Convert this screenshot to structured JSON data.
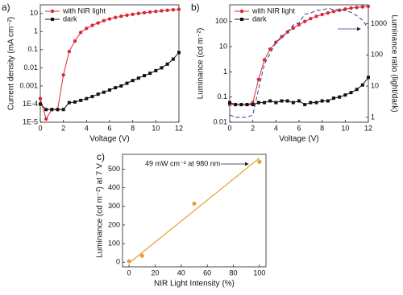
{
  "chart_data": [
    {
      "type": "line",
      "panel_label": "a)",
      "xlabel": "Voltage (V)",
      "ylabel": "Current density (mA cm⁻²)",
      "log_y": true,
      "x": [
        0,
        0.5,
        1,
        1.5,
        2,
        2.5,
        3,
        3.5,
        4,
        4.5,
        5,
        5.5,
        6,
        6.5,
        7,
        7.5,
        8,
        8.5,
        9,
        9.5,
        10,
        10.5,
        11,
        11.5,
        12
      ],
      "xlim": [
        0,
        12
      ],
      "xticks": [
        0,
        2,
        4,
        6,
        8,
        10,
        12
      ],
      "ylim": [
        1e-05,
        30
      ],
      "yticks": [
        {
          "value": 1e-05,
          "label": "1E-5"
        },
        {
          "value": 0.0001,
          "label": "1E-4"
        },
        0.001,
        0.01,
        0.1,
        1,
        10
      ],
      "legend": "top-left",
      "series": [
        {
          "name": "with NIR light",
          "color": "#d62b36",
          "marker": "circle",
          "values": [
            0.0002,
            1.5e-05,
            5e-05,
            5e-05,
            0.004,
            0.08,
            0.3,
            0.9,
            1.5,
            2.2,
            3,
            4,
            5,
            6,
            7,
            8,
            9,
            10,
            11,
            12,
            13,
            14,
            15,
            16,
            17
          ]
        },
        {
          "name": "dark",
          "color": "#111111",
          "marker": "square",
          "values": [
            0.0001,
            5e-05,
            5e-05,
            5e-05,
            5e-05,
            0.00012,
            0.00013,
            0.00016,
            0.0002,
            0.00026,
            0.00035,
            0.00045,
            0.0006,
            0.0008,
            0.001,
            0.0014,
            0.002,
            0.0027,
            0.0037,
            0.005,
            0.007,
            0.01,
            0.016,
            0.03,
            0.07
          ]
        }
      ]
    },
    {
      "type": "line",
      "panel_label": "b)",
      "xlabel": "Voltage (V)",
      "ylabel": "Luminance (cd m⁻²)",
      "y2label": "Luminance ratio (light/dark)",
      "log_y": true,
      "log_y2": true,
      "x": [
        0,
        0.5,
        1,
        1.5,
        2,
        2.5,
        3,
        3.5,
        4,
        4.5,
        5,
        5.5,
        6,
        6.5,
        7,
        7.5,
        8,
        8.5,
        9,
        9.5,
        10,
        10.5,
        11,
        11.5,
        12
      ],
      "xlim": [
        0,
        12
      ],
      "xticks": [
        0,
        2,
        4,
        6,
        8,
        10,
        12
      ],
      "ylim": [
        0.01,
        460
      ],
      "yticks": [
        0.01,
        0.1,
        1,
        10,
        100
      ],
      "y2lim": [
        0.7,
        4000
      ],
      "y2ticks": [
        1,
        10,
        100,
        1000
      ],
      "legend": "top-left",
      "series": [
        {
          "name": "with NIR light",
          "color": "#d62b36",
          "marker": "circle",
          "values": [
            0.05,
            0.05,
            0.05,
            0.05,
            0.06,
            0.5,
            3,
            8,
            15,
            25,
            38,
            55,
            75,
            100,
            130,
            160,
            190,
            220,
            250,
            280,
            310,
            340,
            360,
            380,
            400
          ]
        },
        {
          "name": "dark",
          "color": "#111111",
          "marker": "square",
          "values": [
            0.06,
            0.05,
            0.05,
            0.05,
            0.05,
            0.06,
            0.06,
            0.07,
            0.06,
            0.07,
            0.07,
            0.06,
            0.07,
            0.05,
            0.06,
            0.06,
            0.07,
            0.07,
            0.09,
            0.1,
            0.12,
            0.15,
            0.2,
            0.3,
            0.6
          ]
        },
        {
          "color": "#2b3f8f",
          "dash": true,
          "axis": "y2",
          "values": [
            1.2,
            1,
            1,
            1,
            1.2,
            8,
            50,
            110,
            250,
            350,
            540,
            900,
            1070,
            2000,
            2170,
            2670,
            2700,
            3100,
            2800,
            2800,
            2600,
            2300,
            1800,
            1300,
            700
          ]
        }
      ]
    },
    {
      "type": "scatter",
      "panel_label": "c)",
      "xlabel": "NIR Light Intensity (%)",
      "ylabel": "Luminance (cd m⁻²) at 7 V",
      "annotation": "49 mW cm⁻² at 980 nm",
      "x": [
        0,
        10,
        50,
        100
      ],
      "values": [
        5,
        35,
        315,
        540
      ],
      "color": "#e6a040",
      "fit": {
        "color": "#e6a030",
        "x": [
          0,
          100
        ],
        "values": [
          -5,
          560
        ]
      },
      "xlim": [
        -5,
        105
      ],
      "xticks": [
        0,
        20,
        40,
        60,
        80,
        100
      ],
      "ylim": [
        -25,
        580
      ],
      "yticks": [
        0,
        100,
        200,
        300,
        400,
        500
      ]
    }
  ]
}
